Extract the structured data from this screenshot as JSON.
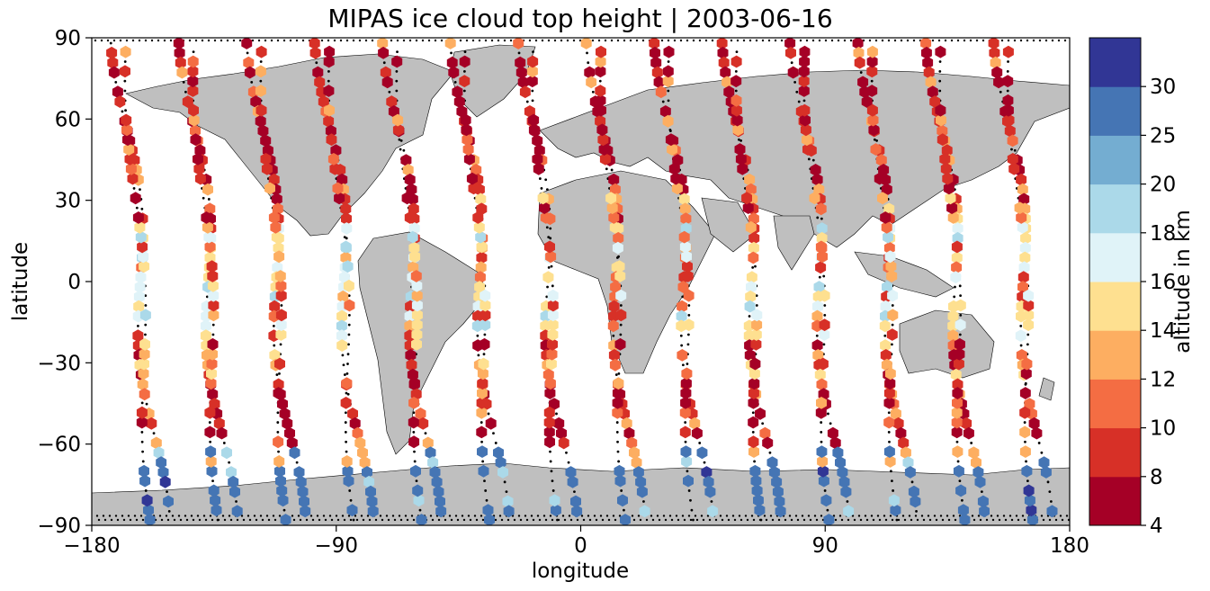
{
  "chart_data": {
    "type": "scatter",
    "title": "MIPAS ice cloud top height | 2003-06-16",
    "xlabel": "longitude",
    "ylabel": "latitude",
    "xlim": [
      -180,
      180
    ],
    "ylim": [
      -90,
      90
    ],
    "xticks": [
      -180,
      -90,
      0,
      90,
      180
    ],
    "yticks": [
      90,
      60,
      30,
      0,
      -30,
      -60,
      -90
    ],
    "xtick_labels": [
      "−180",
      "−90",
      "0",
      "90",
      "180"
    ],
    "ytick_labels": [
      "90",
      "60",
      "30",
      "0",
      "−30",
      "−60",
      "−90"
    ],
    "grid": false,
    "colorbar": {
      "label": "altitude in km",
      "bounds": [
        4,
        8,
        10,
        12,
        14,
        16,
        18,
        20,
        25,
        30
      ],
      "tick_labels": [
        "4",
        "8",
        "10",
        "12",
        "14",
        "16",
        "18",
        "20",
        "25",
        "30"
      ],
      "colors": [
        "#a50026",
        "#d73027",
        "#f46d43",
        "#fdae61",
        "#fee090",
        "#e0f3f8",
        "#abd9e9",
        "#74add1",
        "#4575b4",
        "#313695"
      ]
    },
    "land_color": "#bfbfbf",
    "marker_size_lat_deg": 3.6,
    "orbits": [
      {
        "start_lon": -170,
        "step": 1.3,
        "tilt": 0.045
      },
      {
        "start_lon": -145,
        "step": 1.3,
        "tilt": 0.045
      },
      {
        "start_lon": -120,
        "step": 1.3,
        "tilt": 0.045
      },
      {
        "start_lon": -95,
        "step": 1.3,
        "tilt": 0.045
      },
      {
        "start_lon": -70,
        "step": 1.3,
        "tilt": 0.045
      },
      {
        "start_lon": -45,
        "step": 1.3,
        "tilt": 0.045
      },
      {
        "start_lon": -20,
        "step": 1.3,
        "tilt": 0.045
      },
      {
        "start_lon": 5,
        "step": 1.3,
        "tilt": 0.045
      },
      {
        "start_lon": 30,
        "step": 1.3,
        "tilt": 0.045
      },
      {
        "start_lon": 55,
        "step": 1.3,
        "tilt": 0.045
      },
      {
        "start_lon": 80,
        "step": 1.3,
        "tilt": 0.045
      },
      {
        "start_lon": 105,
        "step": 1.3,
        "tilt": 0.045
      },
      {
        "start_lon": 130,
        "step": 1.3,
        "tilt": 0.045
      },
      {
        "start_lon": 155,
        "step": 1.3,
        "tilt": 0.045
      }
    ]
  }
}
